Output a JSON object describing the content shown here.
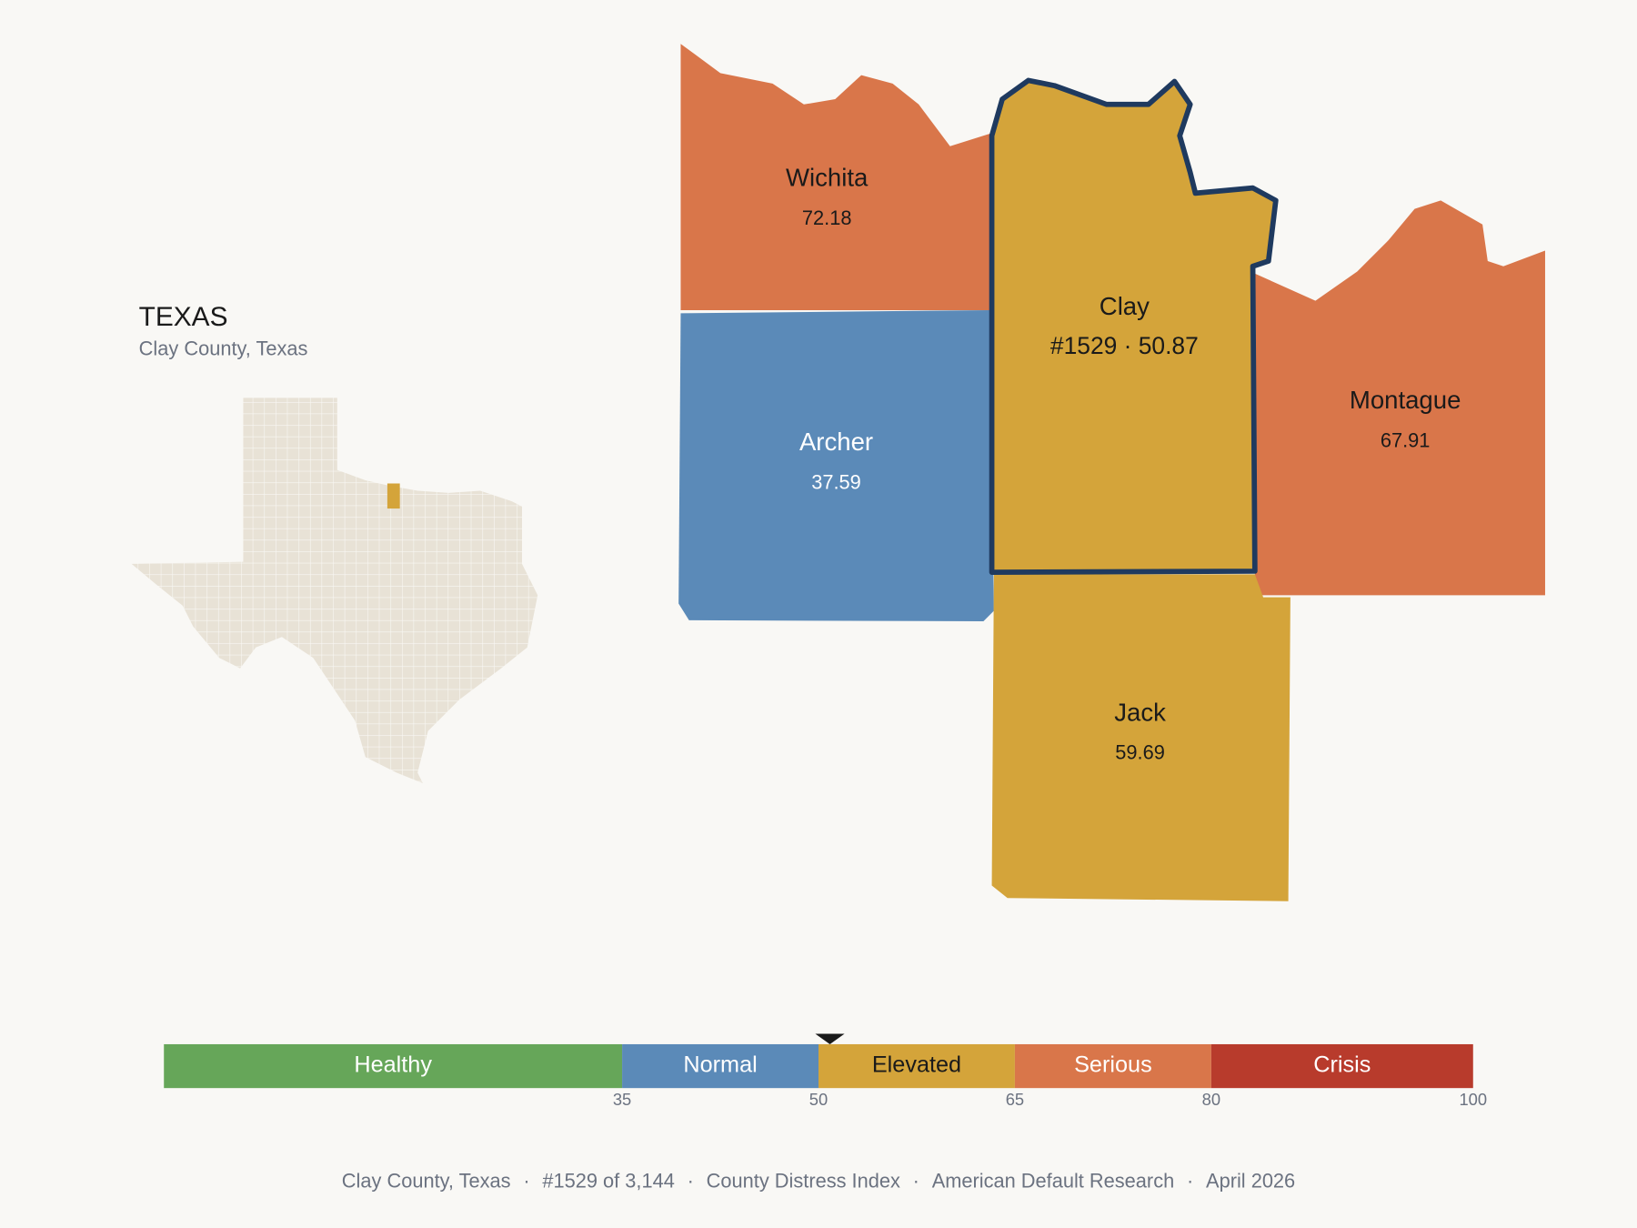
{
  "header": {
    "title": "TEXAS",
    "subtitle": "Clay County, Texas"
  },
  "counties": [
    {
      "name": "Wichita",
      "value": 72.18
    },
    {
      "name": "Archer",
      "value": 37.59
    },
    {
      "name": "Clay",
      "value": 50.87,
      "value_label": "#1529 · 50.87",
      "selected": true
    },
    {
      "name": "Montague",
      "value": 67.91
    },
    {
      "name": "Jack",
      "value": 59.69
    }
  ],
  "scale": {
    "range": [
      0,
      100
    ],
    "bands": [
      {
        "label": "Healthy",
        "to": 35,
        "color": "#66a659"
      },
      {
        "label": "Normal",
        "to": 50,
        "color": "#5b8ab8"
      },
      {
        "label": "Elevated",
        "to": 65,
        "color": "#d4a43a"
      },
      {
        "label": "Serious",
        "to": 80,
        "color": "#d9764a"
      },
      {
        "label": "Crisis",
        "to": 100,
        "color": "#b83b2c"
      }
    ]
  },
  "footer": {
    "parts": [
      "Clay County, Texas",
      "#1529 of 3,144",
      "County Distress Index",
      "American Default Research",
      "April 2026"
    ],
    "separator": "·"
  }
}
